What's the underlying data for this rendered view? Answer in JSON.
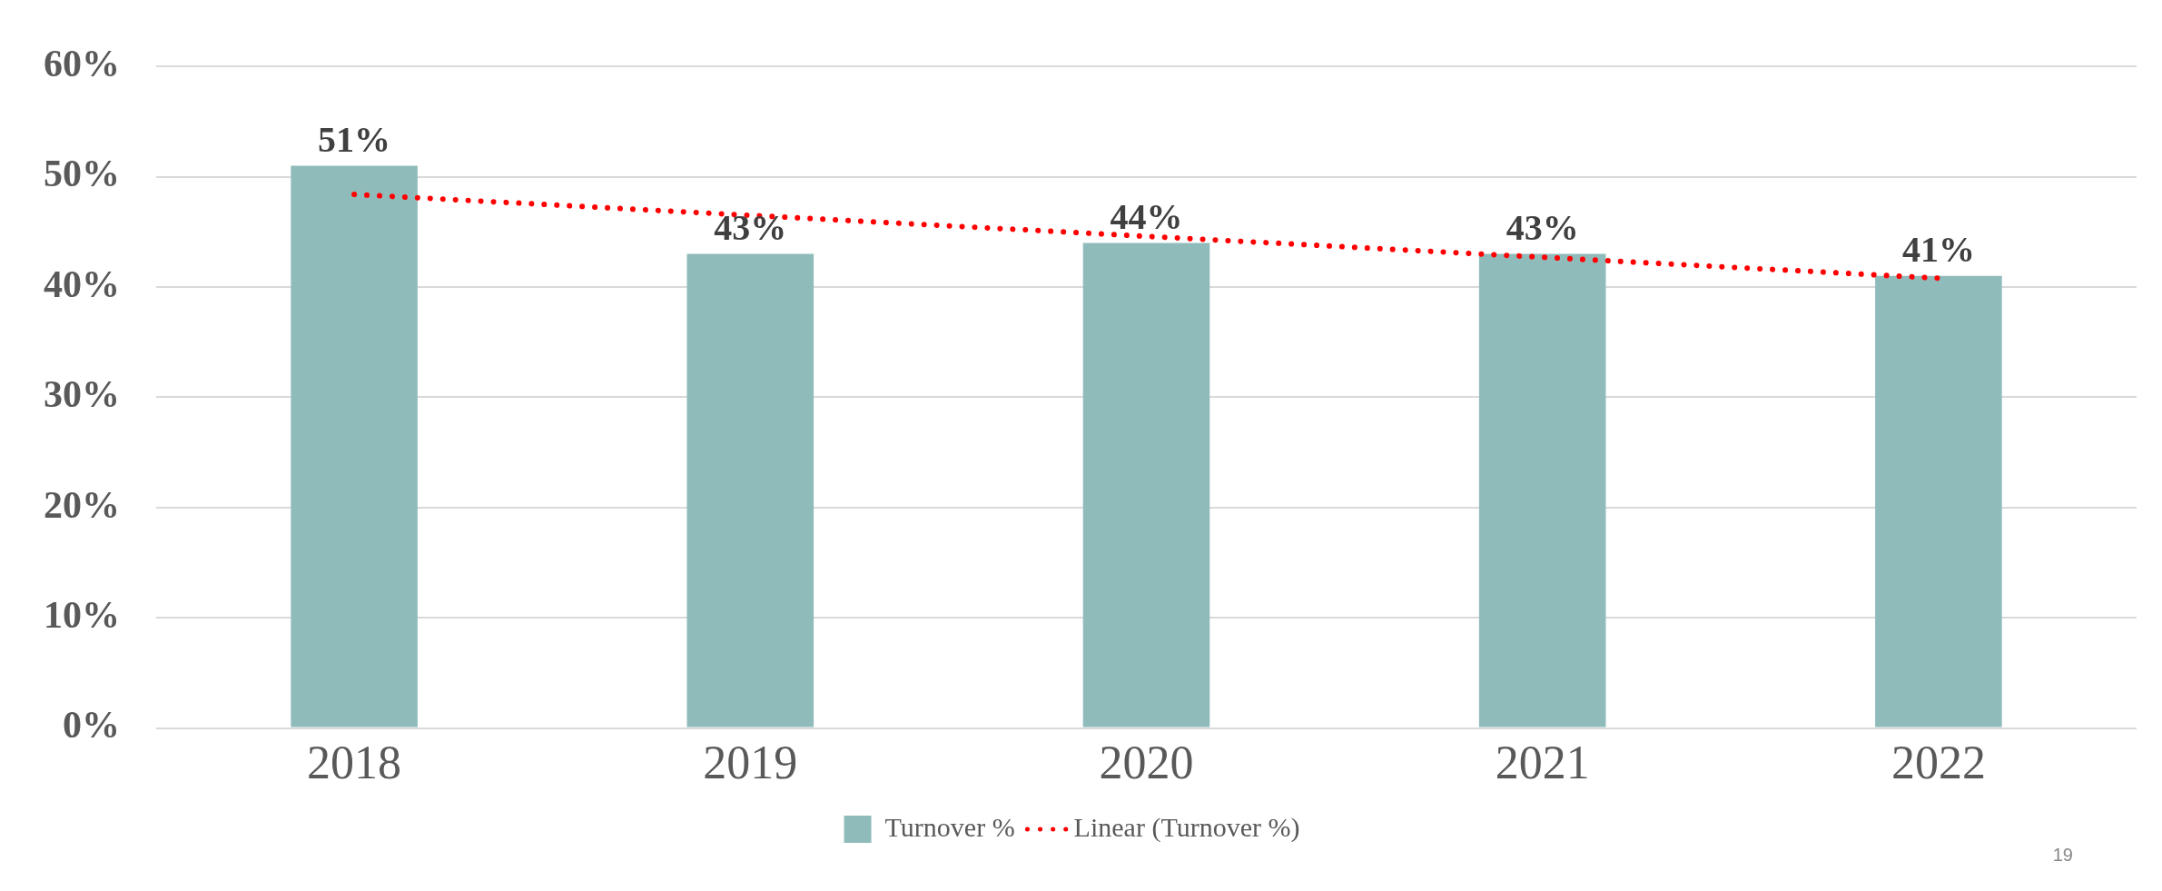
{
  "chart_data": {
    "type": "bar",
    "categories": [
      "2018",
      "2019",
      "2020",
      "2021",
      "2022"
    ],
    "series": [
      {
        "name": "Turnover %",
        "color": "#8fbcbb",
        "values": [
          51,
          43,
          44,
          43,
          41
        ],
        "value_labels": [
          "51%",
          "43%",
          "44%",
          "43%",
          "41%"
        ]
      },
      {
        "name": "Linear (Turnover %)",
        "type": "line",
        "color": "#ff0000",
        "line_style": "dotted",
        "marker": "none",
        "values": [
          48.4,
          46.5,
          44.6,
          42.7,
          40.8
        ]
      }
    ],
    "ylim": [
      0,
      60
    ],
    "yticks": [
      {
        "value": 0,
        "label": "0%"
      },
      {
        "value": 10,
        "label": "10%"
      },
      {
        "value": 20,
        "label": "20%"
      },
      {
        "value": 30,
        "label": "30%"
      },
      {
        "value": 40,
        "label": "40%"
      },
      {
        "value": 50,
        "label": "50%"
      },
      {
        "value": 60,
        "label": "60%"
      }
    ],
    "grid": "y",
    "legend": "bottom",
    "annotations": [
      "19"
    ]
  }
}
